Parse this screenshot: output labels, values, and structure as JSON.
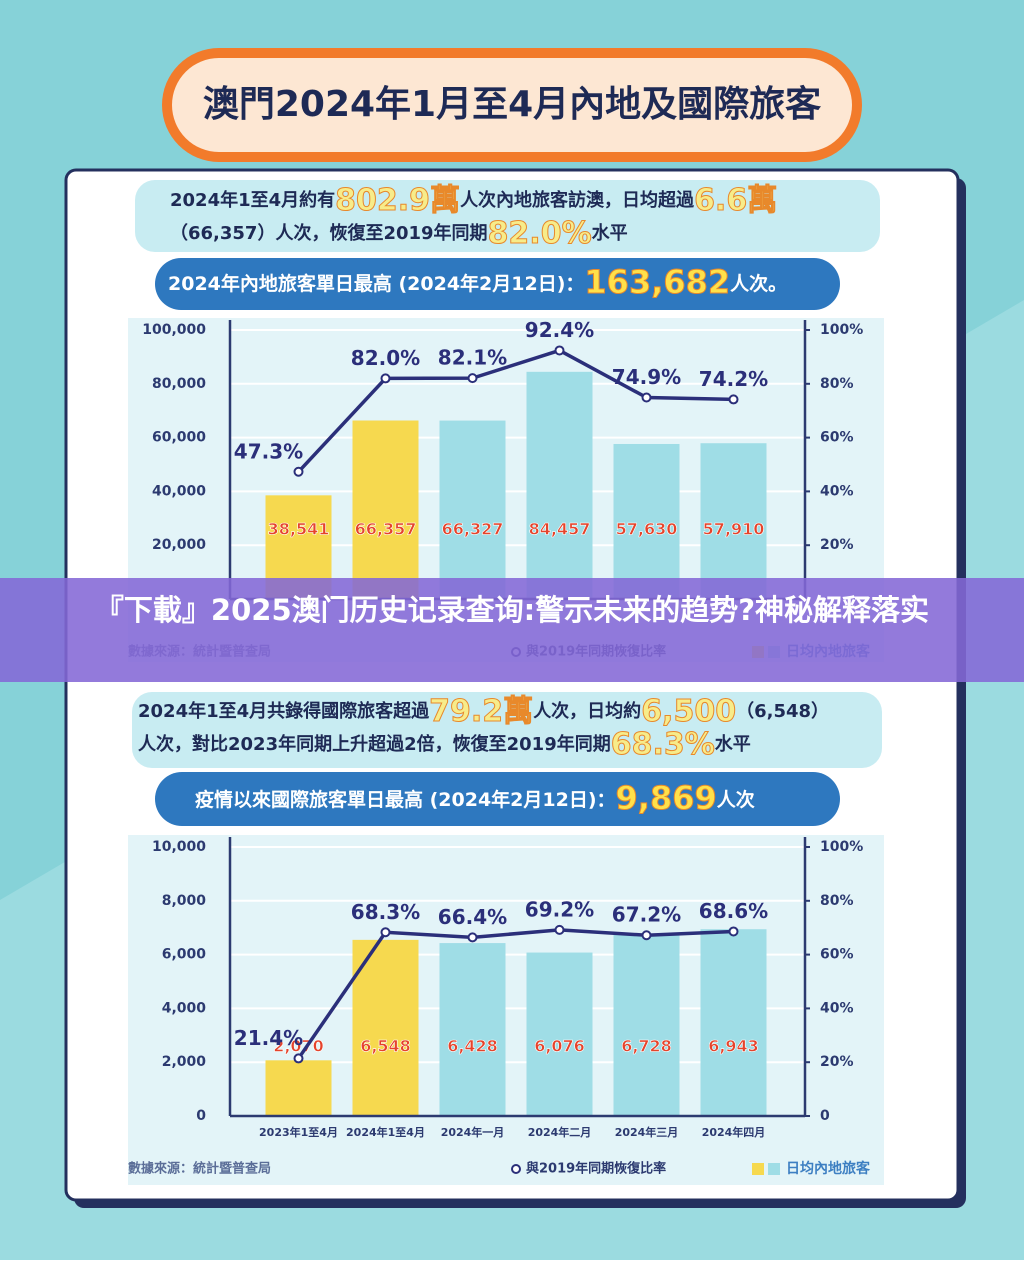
{
  "title": "澳門2024年1月至4月內地及國際旅客",
  "summary_1": [
    [
      "2024年1至4月約有",
      "802.9萬",
      "人次內地旅客訪澳，日均超過",
      "6.6萬"
    ],
    [
      "（66,357）人次，恢復至2019年同期",
      "82.0%",
      "水平"
    ]
  ],
  "record_1": [
    "2024年內地旅客單日最高 (2024年2月12日)：",
    "163,682",
    "人次。"
  ],
  "summary_2": [
    [
      "2024年1至4月共錄得國際旅客超過",
      "79.2萬",
      "人次，日均約",
      "6,500",
      "（6,548）"
    ],
    [
      "人次，對比2023年同期上升超過2倍，恢復至2019年同期",
      "68.3%",
      "水平"
    ]
  ],
  "record_2": [
    "疫情以來國際旅客單日最高 (2024年2月12日)：",
    "9,869",
    "人次"
  ],
  "banner": "『下載』2025澳门历史记录查询:警示未来的趋势?神秘解释落实",
  "chart_data": [
    {
      "type": "combo",
      "categories": [
        null,
        null,
        null,
        null,
        null,
        null
      ],
      "series": [
        {
          "name": "日均內地旅客",
          "type": "bar",
          "colors": [
            "#f6d94f",
            "#f6d94f",
            "#9fdde6",
            "#9fdde6",
            "#9fdde6",
            "#9fdde6"
          ],
          "values": [
            38541,
            66357,
            66327,
            84457,
            57630,
            57910
          ],
          "value_labels": [
            "38,541",
            "66,357",
            "66,327",
            "84,457",
            "57,630",
            "57,910"
          ]
        },
        {
          "name": "與2019年同期恢復比率",
          "type": "line",
          "color": "#2b2f7a",
          "axis": "y2",
          "values": [
            47.3,
            82.0,
            82.1,
            92.4,
            74.9,
            74.2
          ],
          "value_labels": [
            "47.3%",
            "82.0%",
            "82.1%",
            "92.4%",
            "74.9%",
            "74.2%"
          ]
        }
      ],
      "ylim": [
        0,
        100000
      ],
      "yticks": [
        {
          "value": 20000,
          "label": "20,000"
        },
        {
          "value": 40000,
          "label": "40,000"
        },
        {
          "value": 60000,
          "label": "60,000"
        },
        {
          "value": 80000,
          "label": "80,000"
        },
        {
          "value": 100000,
          "label": "100,000"
        }
      ],
      "y2lim": [
        0,
        100
      ],
      "y2ticks": [
        {
          "value": 20,
          "label": "20%"
        },
        {
          "value": 40,
          "label": "40%"
        },
        {
          "value": 60,
          "label": "60%"
        },
        {
          "value": 80,
          "label": "80%"
        },
        {
          "value": 100,
          "label": "100%"
        }
      ],
      "grid": true,
      "source": "數據來源：統計暨普查局"
    },
    {
      "type": "combo",
      "categories": [
        "2023年1至4月",
        "2024年1至4月",
        "2024年一月",
        "2024年二月",
        "2024年三月",
        "2024年四月"
      ],
      "series": [
        {
          "name": "日均內地旅客",
          "type": "bar",
          "colors": [
            "#f6d94f",
            "#f6d94f",
            "#9fdde6",
            "#9fdde6",
            "#9fdde6",
            "#9fdde6"
          ],
          "values": [
            2070,
            6548,
            6428,
            6076,
            6728,
            6943
          ],
          "value_labels": [
            "2,070",
            "6,548",
            "6,428",
            "6,076",
            "6,728",
            "6,943"
          ]
        },
        {
          "name": "與2019年同期恢復比率",
          "type": "line",
          "color": "#2b2f7a",
          "axis": "y2",
          "values": [
            21.4,
            68.3,
            66.4,
            69.2,
            67.2,
            68.6
          ],
          "value_labels": [
            "21.4%",
            "68.3%",
            "66.4%",
            "69.2%",
            "67.2%",
            "68.6%"
          ]
        }
      ],
      "ylim": [
        0,
        10000
      ],
      "yticks": [
        0,
        {
          "value": 2000,
          "label": "2,000"
        },
        {
          "value": 4000,
          "label": "4,000"
        },
        {
          "value": 6000,
          "label": "6,000"
        },
        {
          "value": 8000,
          "label": "8,000"
        },
        {
          "value": 10000,
          "label": "10,000"
        }
      ],
      "y2lim": [
        0,
        100
      ],
      "y2ticks": [
        0,
        {
          "value": 20,
          "label": "20%"
        },
        {
          "value": 40,
          "label": "40%"
        },
        {
          "value": 60,
          "label": "60%"
        },
        {
          "value": 80,
          "label": "80%"
        },
        {
          "value": 100,
          "label": "100%"
        }
      ],
      "grid": true,
      "source": "數據來源：統計暨普查局"
    }
  ]
}
